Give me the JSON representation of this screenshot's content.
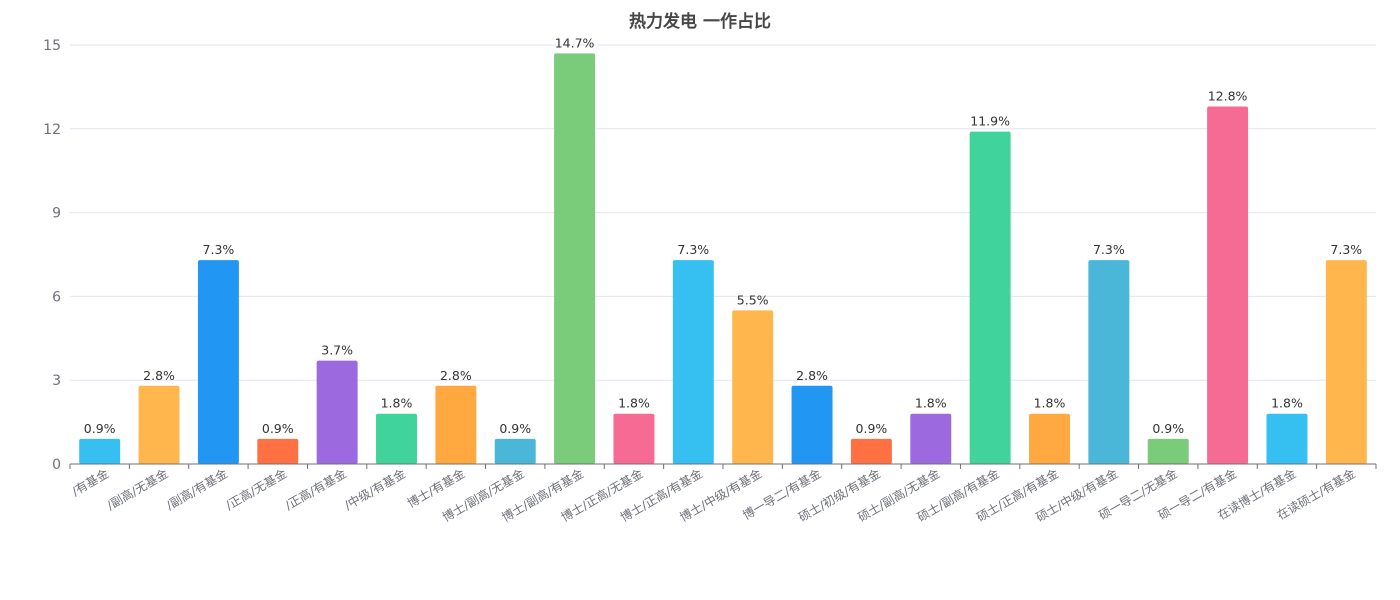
{
  "chart_data": {
    "type": "bar",
    "title": "热力发电 一作占比",
    "xlabel": "",
    "ylabel": "",
    "ylim": [
      0,
      15
    ],
    "yticks": [
      0,
      3,
      6,
      9,
      12,
      15
    ],
    "grid": true,
    "categories": [
      "/有基金",
      "/副高/无基金",
      "/副高/有基金",
      "/正高/无基金",
      "/正高/有基金",
      "/中级/有基金",
      "博士/有基金",
      "博士/副高/无基金",
      "博士/副高/有基金",
      "博士/正高/无基金",
      "博士/正高/有基金",
      "博士/中级/有基金",
      "博一导二/有基金",
      "硕士/初级/有基金",
      "硕士/副高/无基金",
      "硕士/副高/有基金",
      "硕士/正高/有基金",
      "硕士/中级/有基金",
      "硕一导二/无基金",
      "硕一导二/有基金",
      "在读博士/有基金",
      "在读硕士/有基金"
    ],
    "values": [
      0.9,
      2.8,
      7.3,
      0.9,
      3.7,
      1.8,
      2.8,
      0.9,
      14.7,
      1.8,
      7.3,
      5.5,
      2.8,
      0.9,
      1.8,
      11.9,
      1.8,
      7.3,
      0.9,
      12.8,
      1.8,
      7.3
    ],
    "labels": [
      "0.9%",
      "2.8%",
      "7.3%",
      "0.9%",
      "3.7%",
      "1.8%",
      "2.8%",
      "0.9%",
      "14.7%",
      "1.8%",
      "7.3%",
      "5.5%",
      "2.8%",
      "0.9%",
      "1.8%",
      "11.9%",
      "1.8%",
      "7.3%",
      "0.9%",
      "12.8%",
      "1.8%",
      "7.3%"
    ],
    "colors": [
      "#36c0f2",
      "#ffb74d",
      "#2196f3",
      "#ff7043",
      "#9c6ade",
      "#40d39b",
      "#ffa940",
      "#4ab7d8",
      "#7acb7a",
      "#f56b93",
      "#36c0f2",
      "#ffb74d",
      "#2196f3",
      "#ff7043",
      "#9c6ade",
      "#40d39b",
      "#ffa940",
      "#4ab7d8",
      "#7acb7a",
      "#f56b93",
      "#36c0f2",
      "#ffb74d"
    ]
  }
}
